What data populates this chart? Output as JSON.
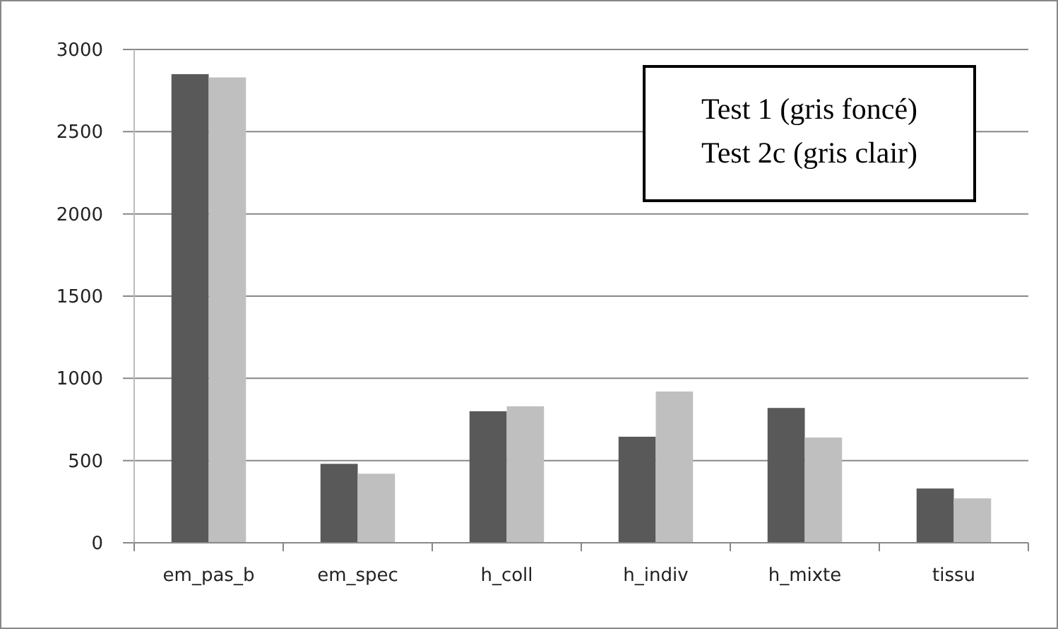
{
  "chart_data": {
    "type": "bar",
    "categories": [
      "em_pas_b",
      "em_spec",
      "h_coll",
      "h_indiv",
      "h_mixte",
      "tissu"
    ],
    "series": [
      {
        "color": "#595959",
        "values": [
          2850,
          480,
          800,
          645,
          820,
          330
        ]
      },
      {
        "color": "#bfbfbf",
        "values": [
          2830,
          420,
          830,
          920,
          640,
          270
        ]
      }
    ],
    "ylim": [
      0,
      3000
    ],
    "yticks": [
      0,
      500,
      1000,
      1500,
      2000,
      2500,
      3000
    ],
    "grid": "y",
    "annotations": [
      "Test 1 (gris foncé)",
      "Test 2c (gris clair)"
    ]
  }
}
